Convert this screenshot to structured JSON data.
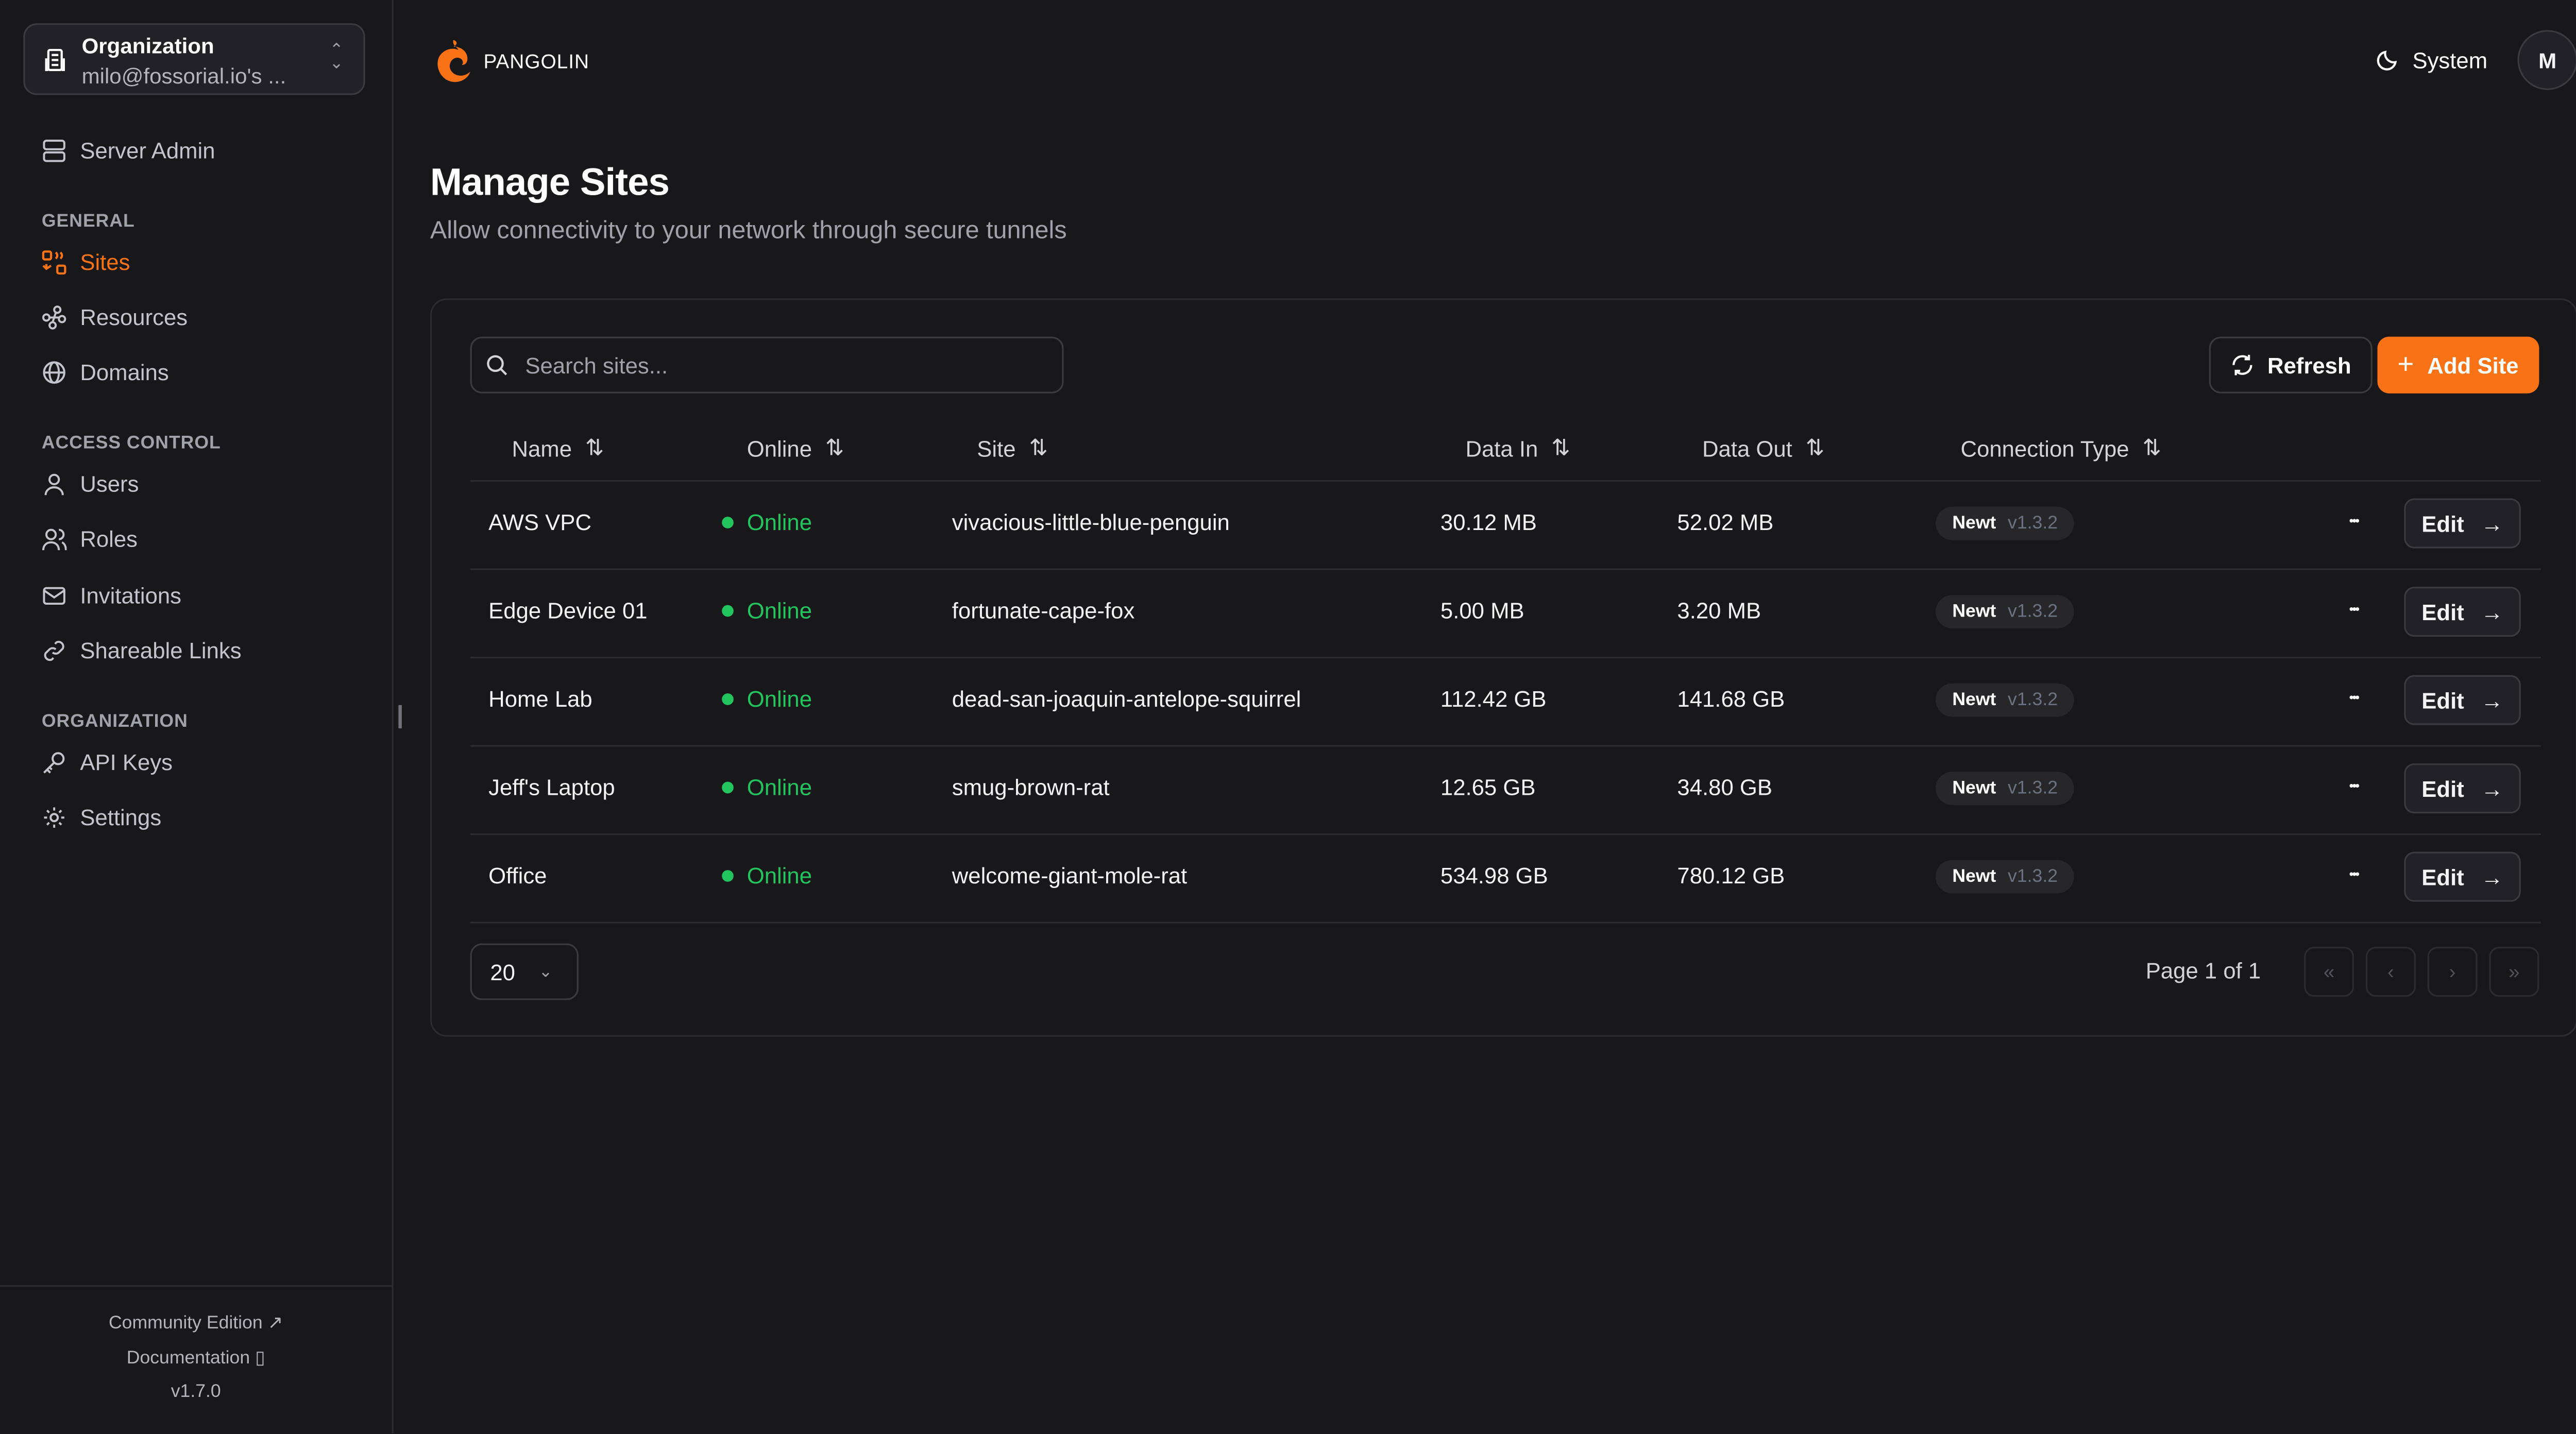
{
  "sidebar": {
    "org": {
      "label": "Organization",
      "value": "milo@fossorial.io's ..."
    },
    "server_admin": "Server Admin",
    "sections": [
      {
        "title": "GENERAL",
        "items": [
          {
            "label": "Sites",
            "icon": "sites-icon",
            "active": true
          },
          {
            "label": "Resources",
            "icon": "resources-icon"
          },
          {
            "label": "Domains",
            "icon": "globe-icon"
          }
        ]
      },
      {
        "title": "ACCESS CONTROL",
        "items": [
          {
            "label": "Users",
            "icon": "user-icon"
          },
          {
            "label": "Roles",
            "icon": "users-icon"
          },
          {
            "label": "Invitations",
            "icon": "mail-icon"
          },
          {
            "label": "Shareable Links",
            "icon": "link-icon"
          }
        ]
      },
      {
        "title": "ORGANIZATION",
        "items": [
          {
            "label": "API Keys",
            "icon": "key-icon"
          },
          {
            "label": "Settings",
            "icon": "gear-icon"
          }
        ]
      }
    ],
    "footer": {
      "edition": "Community Edition",
      "docs": "Documentation",
      "version": "v1.7.0"
    }
  },
  "header": {
    "brand": "PANGOLIN",
    "theme": "System",
    "avatar": "M",
    "accent": "#f97316"
  },
  "page": {
    "title": "Manage Sites",
    "subtitle": "Allow connectivity to your network through secure tunnels"
  },
  "toolbar": {
    "search_placeholder": "Search sites...",
    "refresh": "Refresh",
    "add": "Add Site"
  },
  "table": {
    "columns": [
      "Name",
      "Online",
      "Site",
      "Data In",
      "Data Out",
      "Connection Type"
    ],
    "rows": [
      {
        "name": "AWS VPC",
        "online": "Online",
        "site": "vivacious-little-blue-penguin",
        "in": "30.12 MB",
        "out": "52.02 MB",
        "type": "Newt",
        "ver": "v1.3.2"
      },
      {
        "name": "Edge Device 01",
        "online": "Online",
        "site": "fortunate-cape-fox",
        "in": "5.00 MB",
        "out": "3.20 MB",
        "type": "Newt",
        "ver": "v1.3.2"
      },
      {
        "name": "Home Lab",
        "online": "Online",
        "site": "dead-san-joaquin-antelope-squirrel",
        "in": "112.42 GB",
        "out": "141.68 GB",
        "type": "Newt",
        "ver": "v1.3.2"
      },
      {
        "name": "Jeff's Laptop",
        "online": "Online",
        "site": "smug-brown-rat",
        "in": "12.65 GB",
        "out": "34.80 GB",
        "type": "Newt",
        "ver": "v1.3.2"
      },
      {
        "name": "Office",
        "online": "Online",
        "site": "welcome-giant-mole-rat",
        "in": "534.98 GB",
        "out": "780.12 GB",
        "type": "Newt",
        "ver": "v1.3.2"
      }
    ],
    "edit_label": "Edit"
  },
  "pagination": {
    "page_size": "20",
    "info": "Page 1 of 1"
  }
}
